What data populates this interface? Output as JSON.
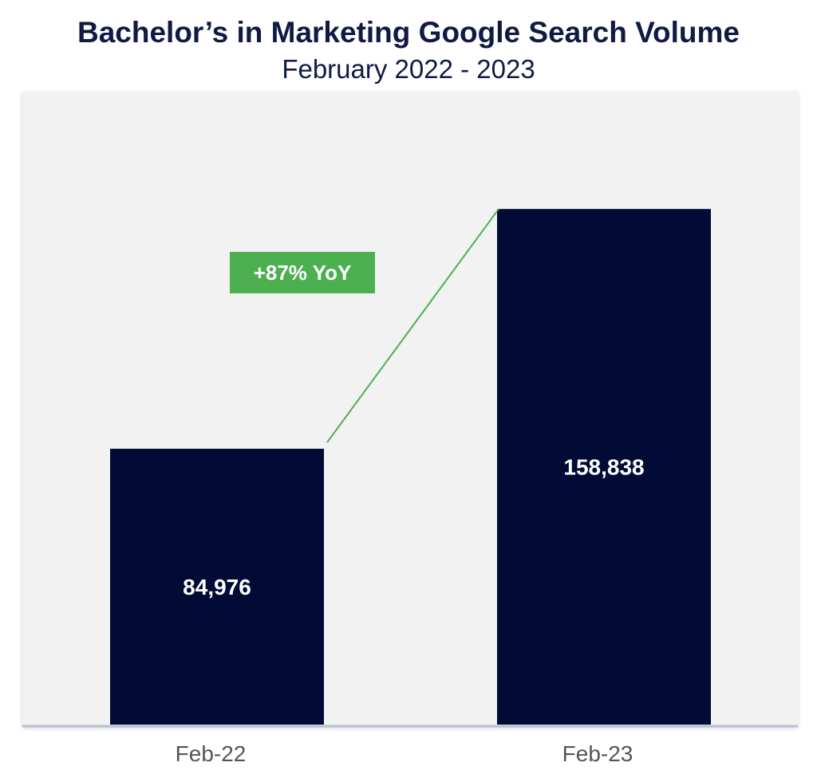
{
  "chart_data": {
    "type": "bar",
    "title": "Bachelor’s in Marketing Google Search Volume",
    "subtitle": "February 2022 - 2023",
    "categories": [
      "Feb-22",
      "Feb-23"
    ],
    "values": [
      84976,
      158838
    ],
    "value_labels": [
      "84,976",
      "158,838"
    ],
    "ylim": [
      0,
      180000
    ],
    "grid": false,
    "annotation": "+87% YoY",
    "colors": {
      "bar": "#020b36",
      "plot_background": "#f2f2f2",
      "annotation_box": "#4caf50",
      "connector_line": "#4caf50",
      "title": "#0f1a45"
    }
  }
}
